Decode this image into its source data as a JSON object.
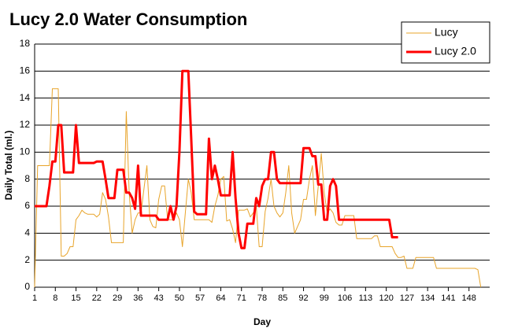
{
  "chart_data": {
    "type": "line",
    "title": "Lucy 2.0 Water Consumption",
    "x_label": "Day",
    "y_label": "Daily Total (ml.)",
    "x": [
      1,
      2,
      3,
      4,
      5,
      6,
      7,
      8,
      9,
      10,
      11,
      12,
      13,
      14,
      15,
      16,
      17,
      18,
      19,
      20,
      21,
      22,
      23,
      24,
      25,
      26,
      27,
      28,
      29,
      30,
      31,
      32,
      33,
      34,
      35,
      36,
      37,
      38,
      39,
      40,
      41,
      42,
      43,
      44,
      45,
      46,
      47,
      48,
      49,
      50,
      51,
      52,
      53,
      54,
      55,
      56,
      57,
      58,
      59,
      60,
      61,
      62,
      63,
      64,
      65,
      66,
      67,
      68,
      69,
      70,
      71,
      72,
      73,
      74,
      75,
      76,
      77,
      78,
      79,
      80,
      81,
      82,
      83,
      84,
      85,
      86,
      87,
      88,
      89,
      90,
      91,
      92,
      93,
      94,
      95,
      96,
      97,
      98,
      99,
      100,
      101,
      102,
      103,
      104,
      105,
      106,
      107,
      108,
      109,
      110,
      111,
      112,
      113,
      114,
      115,
      116,
      117,
      118,
      119,
      120,
      121,
      122,
      123,
      124,
      125,
      126,
      127,
      128,
      129,
      130,
      131,
      132,
      133,
      134,
      135,
      136,
      137,
      138,
      139,
      140,
      141,
      142,
      143,
      144,
      145,
      146,
      147,
      148,
      149,
      150,
      151,
      152
    ],
    "series": [
      {
        "name": "Lucy",
        "color": "#e8a42a",
        "width": 1,
        "values": [
          0,
          9,
          9,
          9,
          9,
          9,
          14.7,
          14.7,
          14.7,
          2.3,
          2.3,
          2.5,
          3,
          3,
          5,
          5.3,
          5.7,
          5.5,
          5.4,
          5.4,
          5.4,
          5.2,
          5.4,
          7,
          6.5,
          5.2,
          3.3,
          3.3,
          3.3,
          3.3,
          3.3,
          13,
          7,
          4,
          5,
          5.5,
          5.5,
          7.3,
          9,
          5,
          4.5,
          4.4,
          6.5,
          7.5,
          7.5,
          5,
          5,
          5,
          5.5,
          5,
          3,
          5.5,
          8,
          7,
          5,
          5,
          5,
          5,
          5,
          5,
          4.8,
          6,
          6.8,
          8,
          8.2,
          4.9,
          5,
          4.3,
          3.3,
          5.7,
          5.7,
          5.7,
          5.8,
          5.2,
          5.5,
          6,
          3,
          3,
          5.6,
          6.6,
          8,
          6,
          5.5,
          5.2,
          5.5,
          7,
          9,
          5.5,
          4,
          4.5,
          5,
          6.5,
          6.5,
          8,
          9,
          5.3,
          7.5,
          9.9,
          7,
          5.5,
          5.8,
          5.5,
          4.8,
          4.6,
          4.6,
          5.3,
          5.3,
          5.3,
          5.3,
          3.6,
          3.6,
          3.6,
          3.6,
          3.6,
          3.6,
          3.8,
          3.8,
          3,
          3,
          3,
          3,
          3,
          2.5,
          2.2,
          2.2,
          2.3,
          1.4,
          1.4,
          1.4,
          2.2,
          2.2,
          2.2,
          2.2,
          2.2,
          2.2,
          2.2,
          1.4,
          1.4,
          1.4,
          1.4,
          1.4,
          1.4,
          1.4,
          1.4,
          1.4,
          1.4,
          1.4,
          1.4,
          1.4,
          1.4,
          1.3,
          0
        ]
      },
      {
        "name": "Lucy 2.0",
        "color": "#ff0000",
        "width": 3,
        "values": [
          6,
          6,
          6,
          6,
          6,
          7.5,
          9.3,
          9.3,
          12,
          12,
          8.5,
          8.5,
          8.5,
          8.5,
          12,
          9.2,
          9.2,
          9.2,
          9.2,
          9.2,
          9.2,
          9.3,
          9.3,
          9.3,
          8,
          6.6,
          6.6,
          6.6,
          8.7,
          8.7,
          8.7,
          7,
          7,
          6.6,
          5.8,
          9,
          5.3,
          5.3,
          5.3,
          5.3,
          5.3,
          5.3,
          5,
          5,
          5,
          5,
          6,
          5,
          6,
          10,
          16,
          16,
          16,
          11,
          5.6,
          5.4,
          5.4,
          5.4,
          5.4,
          11,
          8,
          9,
          8,
          6.8,
          6.8,
          6.8,
          6.8,
          10,
          6.6,
          4,
          2.9,
          2.9,
          4.7,
          4.7,
          4.7,
          6.6,
          6,
          7.5,
          8,
          8,
          10,
          10,
          8,
          7.7,
          7.7,
          7.7,
          7.7,
          7.7,
          7.7,
          7.7,
          7.7,
          10.3,
          10.3,
          10.3,
          9.7,
          9.7,
          7.6,
          7.6,
          5,
          5,
          7.5,
          8,
          7.5,
          5,
          5,
          5,
          5,
          5,
          5,
          5,
          5,
          5,
          5,
          5,
          5,
          5,
          5,
          5,
          5,
          5,
          5,
          3.7,
          3.7,
          3.7,
          null,
          null,
          null,
          null,
          null,
          null,
          null,
          null,
          null,
          null,
          null,
          null,
          null,
          null,
          null,
          null,
          null,
          null,
          null,
          null,
          null,
          null,
          null,
          null,
          null,
          null,
          null,
          null
        ]
      }
    ],
    "xlim": [
      1,
      155
    ],
    "xticks": [
      1,
      8,
      15,
      22,
      29,
      36,
      43,
      50,
      57,
      64,
      71,
      78,
      85,
      92,
      99,
      106,
      113,
      120,
      127,
      134,
      141,
      148
    ],
    "ylim": [
      0,
      18
    ],
    "yticks": [
      0,
      2,
      4,
      6,
      8,
      10,
      12,
      14,
      16,
      18
    ],
    "grid": true,
    "legend": "top-right"
  }
}
